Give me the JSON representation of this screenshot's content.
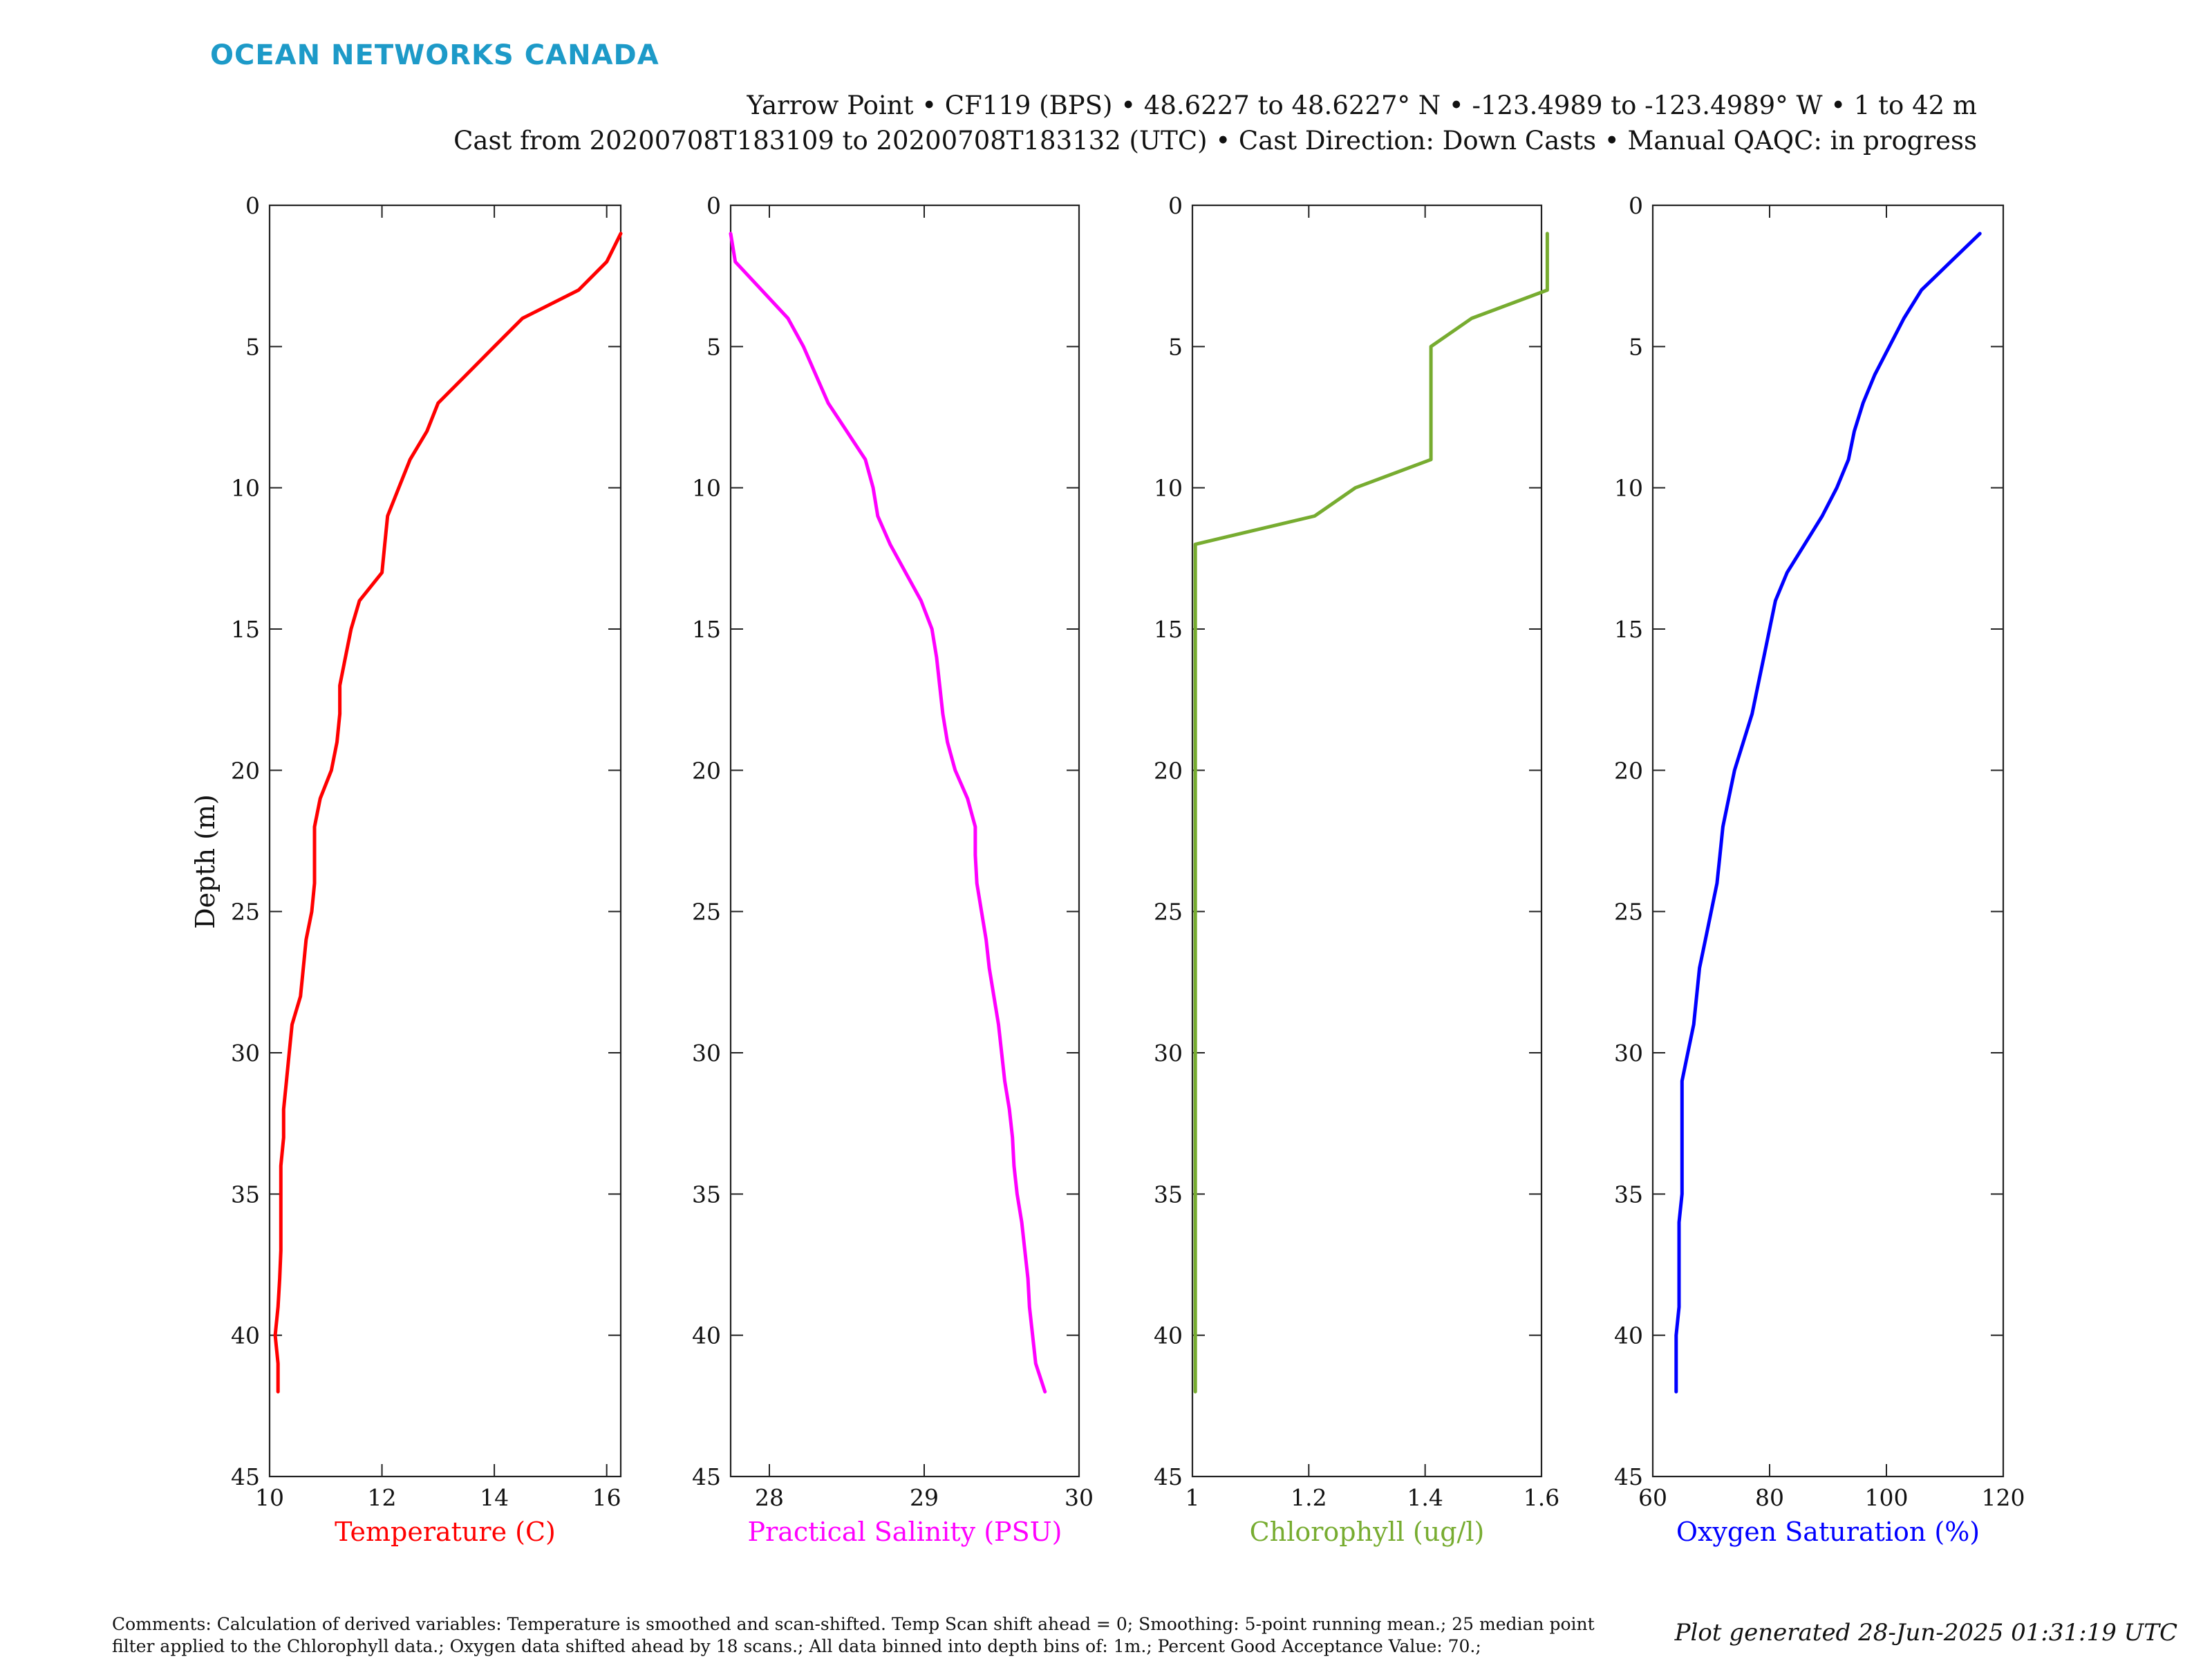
{
  "brand": {
    "name": "OCEAN NETWORKS CANADA",
    "color": "#1d9ac8"
  },
  "header": {
    "line1": "Yarrow Point • CF119 (BPS) • 48.6227 to 48.6227° N • -123.4989 to -123.4989° W • 1 to 42 m",
    "line2": "Cast from 20200708T183109 to 20200708T183132 (UTC) • Cast Direction: Down Casts • Manual QAQC: in progress"
  },
  "footer": {
    "comments_line1": "Comments: Calculation of derived variables: Temperature is smoothed and scan-shifted. Temp Scan shift ahead = 0; Smoothing: 5-point running mean.; 25 median point",
    "comments_line2": "filter applied to the Chlorophyll data.; Oxygen data shifted ahead by 18 scans.; All data binned into depth bins of: 1m.; Percent Good Acceptance Value: 70.;",
    "generated": "Plot generated 28-Jun-2025 01:31:19 UTC"
  },
  "chart_data": [
    {
      "type": "line",
      "xlabel": "Temperature (C)",
      "ylabel": "Depth (m)",
      "color": "#ff0000",
      "xlim": [
        10,
        16.25
      ],
      "xticks": [
        10,
        12,
        14,
        16
      ],
      "ylim": [
        0,
        45
      ],
      "yticks": [
        0,
        5,
        10,
        15,
        20,
        25,
        30,
        35,
        40,
        45
      ],
      "y_reversed": true,
      "series": [
        {
          "x": [
            16.25,
            16.0,
            15.5,
            14.5,
            14.0,
            13.5,
            13.0,
            12.8,
            12.5,
            12.3,
            12.1,
            12.05,
            12.0,
            11.6,
            11.45,
            11.35,
            11.25,
            11.25,
            11.2,
            11.1,
            10.9,
            10.8,
            10.8,
            10.8,
            10.75,
            10.65,
            10.6,
            10.55,
            10.4,
            10.35,
            10.3,
            10.25,
            10.25,
            10.2,
            10.2,
            10.2,
            10.2,
            10.18,
            10.15,
            10.1,
            10.15,
            10.15
          ],
          "y": [
            1,
            2,
            3,
            4,
            5,
            6,
            7,
            8,
            9,
            10,
            11,
            12,
            13,
            14,
            15,
            16,
            17,
            18,
            19,
            20,
            21,
            22,
            23,
            24,
            25,
            26,
            27,
            28,
            29,
            30,
            31,
            32,
            33,
            34,
            35,
            36,
            37,
            38,
            39,
            40,
            41,
            42
          ]
        }
      ]
    },
    {
      "type": "line",
      "xlabel": "Practical Salinity (PSU)",
      "color": "#ff00ff",
      "xlim": [
        27.75,
        30
      ],
      "xticks": [
        28,
        29,
        30
      ],
      "ylim": [
        0,
        45
      ],
      "yticks": [
        0,
        5,
        10,
        15,
        20,
        25,
        30,
        35,
        40,
        45
      ],
      "y_reversed": true,
      "series": [
        {
          "x": [
            27.75,
            27.78,
            27.95,
            28.12,
            28.22,
            28.3,
            28.38,
            28.5,
            28.62,
            28.67,
            28.7,
            28.78,
            28.88,
            28.98,
            29.05,
            29.08,
            29.1,
            29.12,
            29.15,
            29.2,
            29.28,
            29.33,
            29.33,
            29.34,
            29.37,
            29.4,
            29.42,
            29.45,
            29.48,
            29.5,
            29.52,
            29.55,
            29.57,
            29.58,
            29.6,
            29.63,
            29.65,
            29.67,
            29.68,
            29.7,
            29.72,
            29.78
          ],
          "y": [
            1,
            2,
            3,
            4,
            5,
            6,
            7,
            8,
            9,
            10,
            11,
            12,
            13,
            14,
            15,
            16,
            17,
            18,
            19,
            20,
            21,
            22,
            23,
            24,
            25,
            26,
            27,
            28,
            29,
            30,
            31,
            32,
            33,
            34,
            35,
            36,
            37,
            38,
            39,
            40,
            41,
            42
          ]
        }
      ]
    },
    {
      "type": "line",
      "xlabel": "Chlorophyll (ug/l)",
      "color": "#77ac30",
      "xlim": [
        1,
        1.6
      ],
      "xticks": [
        1,
        1.2,
        1.4,
        1.6
      ],
      "ylim": [
        0,
        45
      ],
      "yticks": [
        0,
        5,
        10,
        15,
        20,
        25,
        30,
        35,
        40,
        45
      ],
      "y_reversed": true,
      "series": [
        {
          "x": [
            1.61,
            1.61,
            1.61,
            1.48,
            1.41,
            1.41,
            1.41,
            1.41,
            1.41,
            1.28,
            1.21,
            1.005,
            1.005,
            1.005,
            1.005,
            1.005,
            1.005,
            1.005,
            1.005,
            1.005,
            1.005,
            1.005,
            1.005,
            1.005,
            1.005,
            1.005,
            1.005,
            1.005,
            1.005,
            1.005,
            1.005,
            1.005,
            1.005,
            1.005,
            1.005,
            1.005,
            1.005,
            1.005,
            1.005,
            1.005,
            1.005,
            1.005
          ],
          "y": [
            1,
            2,
            3,
            4,
            5,
            6,
            7,
            8,
            9,
            10,
            11,
            12,
            13,
            14,
            15,
            16,
            17,
            18,
            19,
            20,
            21,
            22,
            23,
            24,
            25,
            26,
            27,
            28,
            29,
            30,
            31,
            32,
            33,
            34,
            35,
            36,
            37,
            38,
            39,
            40,
            41,
            42
          ]
        }
      ]
    },
    {
      "type": "line",
      "xlabel": "Oxygen Saturation (%)",
      "color": "#0000ff",
      "xlim": [
        60,
        120
      ],
      "xticks": [
        60,
        80,
        100,
        120
      ],
      "ylim": [
        0,
        45
      ],
      "yticks": [
        0,
        5,
        10,
        15,
        20,
        25,
        30,
        35,
        40,
        45
      ],
      "y_reversed": true,
      "series": [
        {
          "x": [
            116,
            111,
            106,
            103,
            100.5,
            98,
            96,
            94.5,
            93.5,
            91.5,
            89,
            86,
            83,
            81,
            80,
            79,
            78,
            77,
            75.5,
            74,
            73,
            72,
            71.5,
            71,
            70,
            69,
            68,
            67.5,
            67,
            66,
            65,
            65,
            65,
            65,
            65,
            64.5,
            64.5,
            64.5,
            64.5,
            64,
            64,
            64
          ],
          "y": [
            1,
            2,
            3,
            4,
            5,
            6,
            7,
            8,
            9,
            10,
            11,
            12,
            13,
            14,
            15,
            16,
            17,
            18,
            19,
            20,
            21,
            22,
            23,
            24,
            25,
            26,
            27,
            28,
            29,
            30,
            31,
            32,
            33,
            34,
            35,
            36,
            37,
            38,
            39,
            40,
            41,
            42
          ]
        }
      ]
    }
  ]
}
